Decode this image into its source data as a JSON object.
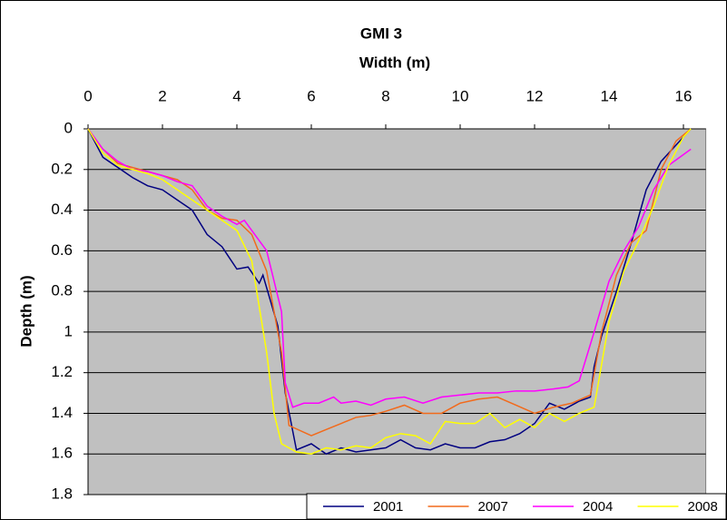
{
  "chart_data": {
    "type": "line",
    "title": "GMI 3",
    "x_label": "Width (m)",
    "y_label": "Depth (m)",
    "xlim": [
      0,
      16.6
    ],
    "xticks": [
      0,
      2,
      4,
      6,
      8,
      10,
      12,
      14,
      16
    ],
    "ylim": [
      0,
      1.8
    ],
    "yticks": [
      0,
      0.2,
      0.4,
      0.6,
      0.8,
      1,
      1.2,
      1.4,
      1.6,
      1.8
    ],
    "y_inverted": true,
    "x_axis_position": "top",
    "grid": true,
    "plot_background": "#c0c0c0",
    "legend": "bottom-right",
    "series": [
      {
        "name": "2001",
        "color": "#000080",
        "x": [
          0,
          0.4,
          0.8,
          1.2,
          1.6,
          2,
          2.4,
          2.8,
          3.2,
          3.6,
          4,
          4.3,
          4.6,
          4.7,
          5.1,
          5.3,
          5.6,
          6,
          6.4,
          6.8,
          7.2,
          7.6,
          8,
          8.4,
          8.8,
          9.2,
          9.6,
          10,
          10.4,
          10.8,
          11.2,
          11.6,
          12,
          12.4,
          12.8,
          13.2,
          13.5,
          13.6,
          13.8,
          14.2,
          14.6,
          15,
          15.4,
          15.8,
          16.2
        ],
        "values": [
          0,
          0.14,
          0.19,
          0.24,
          0.28,
          0.3,
          0.35,
          0.4,
          0.52,
          0.58,
          0.69,
          0.68,
          0.76,
          0.72,
          0.97,
          1.3,
          1.58,
          1.55,
          1.6,
          1.57,
          1.59,
          1.58,
          1.57,
          1.53,
          1.57,
          1.58,
          1.55,
          1.57,
          1.57,
          1.54,
          1.53,
          1.5,
          1.45,
          1.35,
          1.38,
          1.34,
          1.32,
          1.17,
          1.02,
          0.8,
          0.56,
          0.3,
          0.16,
          0.08,
          0
        ]
      },
      {
        "name": "2007",
        "color": "#f26a1b",
        "x": [
          0,
          0.4,
          0.8,
          1.2,
          1.6,
          2,
          2.4,
          2.8,
          3.2,
          3.6,
          4,
          4.4,
          4.8,
          5.2,
          5.4,
          6,
          6.4,
          6.8,
          7.2,
          7.6,
          8,
          8.5,
          9,
          9.5,
          10,
          10.5,
          11,
          11.5,
          12,
          12.5,
          13,
          13.5,
          13.8,
          14.2,
          14.6,
          15,
          15.4,
          15.8,
          16.2
        ],
        "values": [
          0,
          0.1,
          0.17,
          0.19,
          0.21,
          0.23,
          0.25,
          0.3,
          0.4,
          0.44,
          0.45,
          0.52,
          0.7,
          1.1,
          1.46,
          1.51,
          1.48,
          1.45,
          1.42,
          1.41,
          1.39,
          1.36,
          1.4,
          1.4,
          1.35,
          1.33,
          1.32,
          1.36,
          1.4,
          1.37,
          1.35,
          1.31,
          1,
          0.72,
          0.56,
          0.5,
          0.2,
          0.06,
          0
        ]
      },
      {
        "name": "2004",
        "color": "#ff00ff",
        "x": [
          0,
          0.4,
          0.8,
          1.2,
          1.6,
          2,
          2.4,
          2.8,
          3.2,
          3.6,
          4,
          4.2,
          4.4,
          4.8,
          5.2,
          5.3,
          5.5,
          5.8,
          6.2,
          6.6,
          6.8,
          7.2,
          7.6,
          8,
          8.5,
          9,
          9.5,
          10,
          10.5,
          11,
          11.5,
          12,
          12.5,
          12.9,
          13.2,
          13.6,
          14,
          14.4,
          14.8,
          15.2,
          15.6,
          16.2
        ],
        "values": [
          0,
          0.1,
          0.16,
          0.2,
          0.21,
          0.23,
          0.26,
          0.28,
          0.38,
          0.43,
          0.47,
          0.45,
          0.5,
          0.6,
          0.9,
          1.25,
          1.37,
          1.35,
          1.35,
          1.32,
          1.35,
          1.34,
          1.36,
          1.33,
          1.32,
          1.35,
          1.32,
          1.31,
          1.3,
          1.3,
          1.29,
          1.29,
          1.28,
          1.27,
          1.24,
          1,
          0.75,
          0.6,
          0.48,
          0.3,
          0.18,
          0.1
        ]
      },
      {
        "name": "2008",
        "color": "#ffff00",
        "x": [
          0,
          0.4,
          0.8,
          1.2,
          1.6,
          2,
          2.4,
          2.8,
          3.2,
          3.6,
          4,
          4.4,
          4.8,
          5,
          5.2,
          5.6,
          6,
          6.4,
          6.8,
          7.2,
          7.6,
          8,
          8.4,
          8.8,
          9.2,
          9.6,
          10,
          10.4,
          10.8,
          11.2,
          11.6,
          12,
          12.4,
          12.8,
          13.2,
          13.6,
          14,
          14.4,
          14.8,
          15.2,
          15.6,
          16,
          16.2
        ],
        "values": [
          0,
          0.12,
          0.18,
          0.2,
          0.22,
          0.25,
          0.3,
          0.35,
          0.4,
          0.45,
          0.5,
          0.65,
          1.1,
          1.4,
          1.55,
          1.59,
          1.6,
          1.57,
          1.58,
          1.56,
          1.57,
          1.52,
          1.5,
          1.51,
          1.55,
          1.44,
          1.45,
          1.45,
          1.4,
          1.47,
          1.43,
          1.47,
          1.4,
          1.44,
          1.4,
          1.37,
          0.95,
          0.7,
          0.55,
          0.38,
          0.18,
          0.04,
          0
        ]
      }
    ]
  }
}
